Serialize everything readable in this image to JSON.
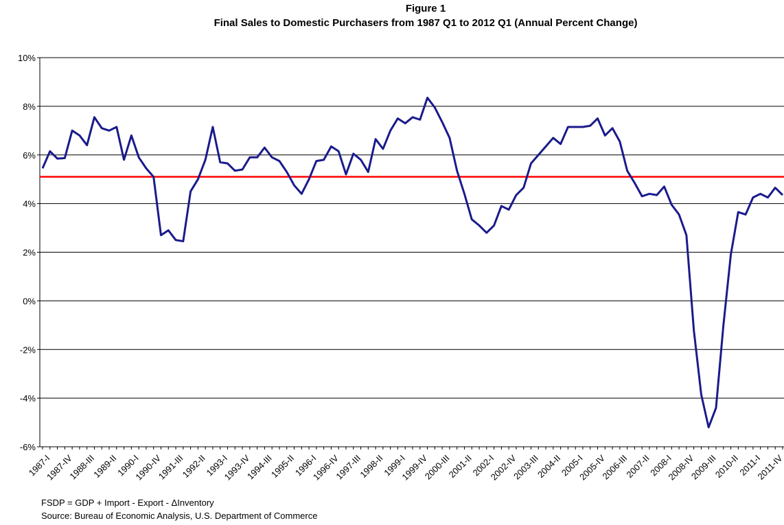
{
  "chart_data": {
    "type": "line",
    "title": "Figure 1",
    "subtitle": "Final Sales to Domestic Purchasers from 1987 Q1 to 2012 Q1 (Annual Percent Change)",
    "categories": [
      "1987-I",
      null,
      null,
      "1987-IV",
      null,
      null,
      "1988-III",
      null,
      null,
      "1989-II",
      null,
      null,
      "1990-I",
      null,
      null,
      "1990-IV",
      null,
      null,
      "1991-III",
      null,
      null,
      "1992-II",
      null,
      null,
      "1993-I",
      null,
      null,
      "1993-IV",
      null,
      null,
      "1994-III",
      null,
      null,
      "1995-II",
      null,
      null,
      "1996-I",
      null,
      null,
      "1996-IV",
      null,
      null,
      "1997-III",
      null,
      null,
      "1998-II",
      null,
      null,
      "1999-I",
      null,
      null,
      "1999-IV",
      null,
      null,
      "2000-III",
      null,
      null,
      "2001-II",
      null,
      null,
      "2002-I",
      null,
      null,
      "2002-IV",
      null,
      null,
      "2003-III",
      null,
      null,
      "2004-II",
      null,
      null,
      "2005-I",
      null,
      null,
      "2005-IV",
      null,
      null,
      "2006-III",
      null,
      null,
      "2007-II",
      null,
      null,
      "2008-I",
      null,
      null,
      "2008-IV",
      null,
      null,
      "2009-III",
      null,
      null,
      "2010-II",
      null,
      null,
      "2011-I",
      null,
      null,
      "2011-IV",
      null
    ],
    "series": [
      {
        "color": "#1a1a8c",
        "values": [
          5.45,
          6.15,
          5.85,
          5.87,
          7.0,
          6.8,
          6.4,
          7.55,
          7.1,
          7.0,
          7.15,
          5.8,
          6.8,
          5.9,
          5.45,
          5.1,
          2.7,
          2.9,
          2.5,
          2.45,
          4.5,
          5.0,
          5.8,
          7.15,
          5.7,
          5.65,
          5.35,
          5.4,
          5.9,
          5.9,
          6.3,
          5.9,
          5.75,
          5.3,
          4.75,
          4.4,
          5.0,
          5.75,
          5.8,
          6.35,
          6.15,
          5.2,
          6.05,
          5.8,
          5.3,
          6.65,
          6.25,
          7.0,
          7.5,
          7.3,
          7.55,
          7.45,
          8.35,
          7.95,
          7.35,
          6.7,
          5.35,
          4.4,
          3.35,
          3.1,
          2.8,
          3.1,
          3.9,
          3.75,
          4.35,
          4.65,
          5.65,
          6.0,
          6.35,
          6.7,
          6.45,
          7.15,
          7.15,
          7.15,
          7.2,
          7.5,
          6.8,
          7.1,
          6.55,
          5.35,
          4.85,
          4.3,
          4.4,
          4.35,
          4.7,
          3.95,
          3.55,
          2.7,
          -1.2,
          -3.85,
          -5.2,
          -4.4,
          -1.0,
          1.9,
          3.65,
          3.55,
          4.25,
          4.4,
          4.25,
          4.65,
          4.35
        ]
      }
    ],
    "reference_line": {
      "value": 5.1,
      "color": "#ff0000"
    },
    "ylim": [
      -6,
      10
    ],
    "yticks": [
      {
        "value": -6,
        "label": "-6%"
      },
      {
        "value": -4,
        "label": "-4%"
      },
      {
        "value": -2,
        "label": "-2%"
      },
      {
        "value": 0,
        "label": "0%"
      },
      {
        "value": 2,
        "label": "2%"
      },
      {
        "value": 4,
        "label": "4%"
      },
      {
        "value": 6,
        "label": "6%"
      },
      {
        "value": 8,
        "label": "8%"
      },
      {
        "value": 10,
        "label": "10%"
      }
    ],
    "grid": true,
    "notes": [
      "FSDP = GDP + Import - Export - ΔInventory",
      "Source: Bureau of Economic Analysis, U.S. Department of Commerce"
    ]
  }
}
